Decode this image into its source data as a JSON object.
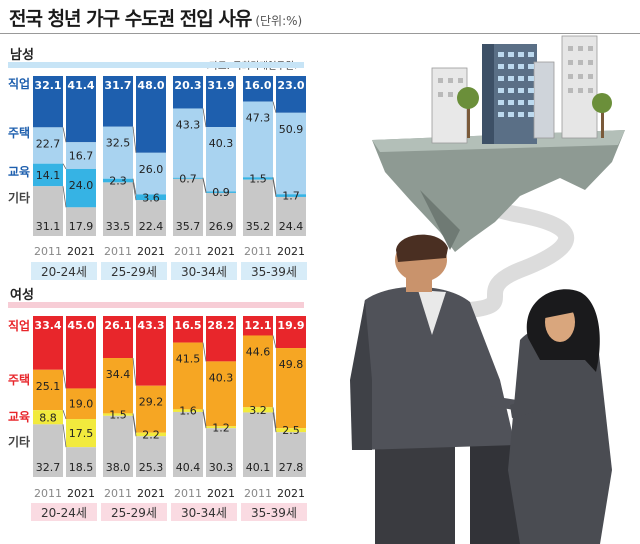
{
  "title": "전국 청년 가구 수도권 전입 사유",
  "unit": "(단위:%)",
  "source": "<자료: 국회미래연구원>",
  "chart_data": {
    "type": "bar",
    "stacked": true,
    "percent": true,
    "categories_label": [
      "직업",
      "주택",
      "교육",
      "기타"
    ],
    "years": [
      "2011",
      "2021"
    ],
    "age_groups": [
      "20-24세",
      "25-29세",
      "30-34세",
      "35-39세"
    ],
    "colors": {
      "male": [
        "#1e5fae",
        "#a9d3f0",
        "#36b3e4",
        "#c8c8c8"
      ],
      "female": [
        "#e8262b",
        "#f6a623",
        "#f2ea3d",
        "#c8c8c8"
      ]
    },
    "panels": [
      {
        "gender": "남성",
        "groups": [
          {
            "age": "20-24세",
            "y2011": [
              32.1,
              22.7,
              14.1,
              31.1
            ],
            "y2021": [
              41.4,
              16.7,
              24.0,
              17.9
            ]
          },
          {
            "age": "25-29세",
            "y2011": [
              31.7,
              32.5,
              2.3,
              33.5
            ],
            "y2021": [
              48.0,
              26.0,
              3.6,
              22.4
            ]
          },
          {
            "age": "30-34세",
            "y2011": [
              20.3,
              43.3,
              0.7,
              35.7
            ],
            "y2021": [
              31.9,
              40.3,
              0.9,
              26.9
            ]
          },
          {
            "age": "35-39세",
            "y2011": [
              16.0,
              47.3,
              1.5,
              35.2
            ],
            "y2021": [
              23.0,
              50.9,
              1.7,
              24.4
            ]
          }
        ]
      },
      {
        "gender": "여성",
        "groups": [
          {
            "age": "20-24세",
            "y2011": [
              33.4,
              25.1,
              8.8,
              32.7
            ],
            "y2021": [
              45.0,
              19.0,
              17.5,
              18.5
            ]
          },
          {
            "age": "25-29세",
            "y2011": [
              26.1,
              34.4,
              1.5,
              38.0
            ],
            "y2021": [
              43.3,
              29.2,
              2.2,
              25.3
            ]
          },
          {
            "age": "30-34세",
            "y2011": [
              16.5,
              41.5,
              1.6,
              40.4
            ],
            "y2021": [
              28.2,
              40.3,
              1.2,
              30.3
            ]
          },
          {
            "age": "35-39세",
            "y2011": [
              12.1,
              44.6,
              3.2,
              40.1
            ],
            "y2021": [
              19.9,
              49.8,
              2.5,
              27.8
            ]
          }
        ]
      }
    ]
  }
}
